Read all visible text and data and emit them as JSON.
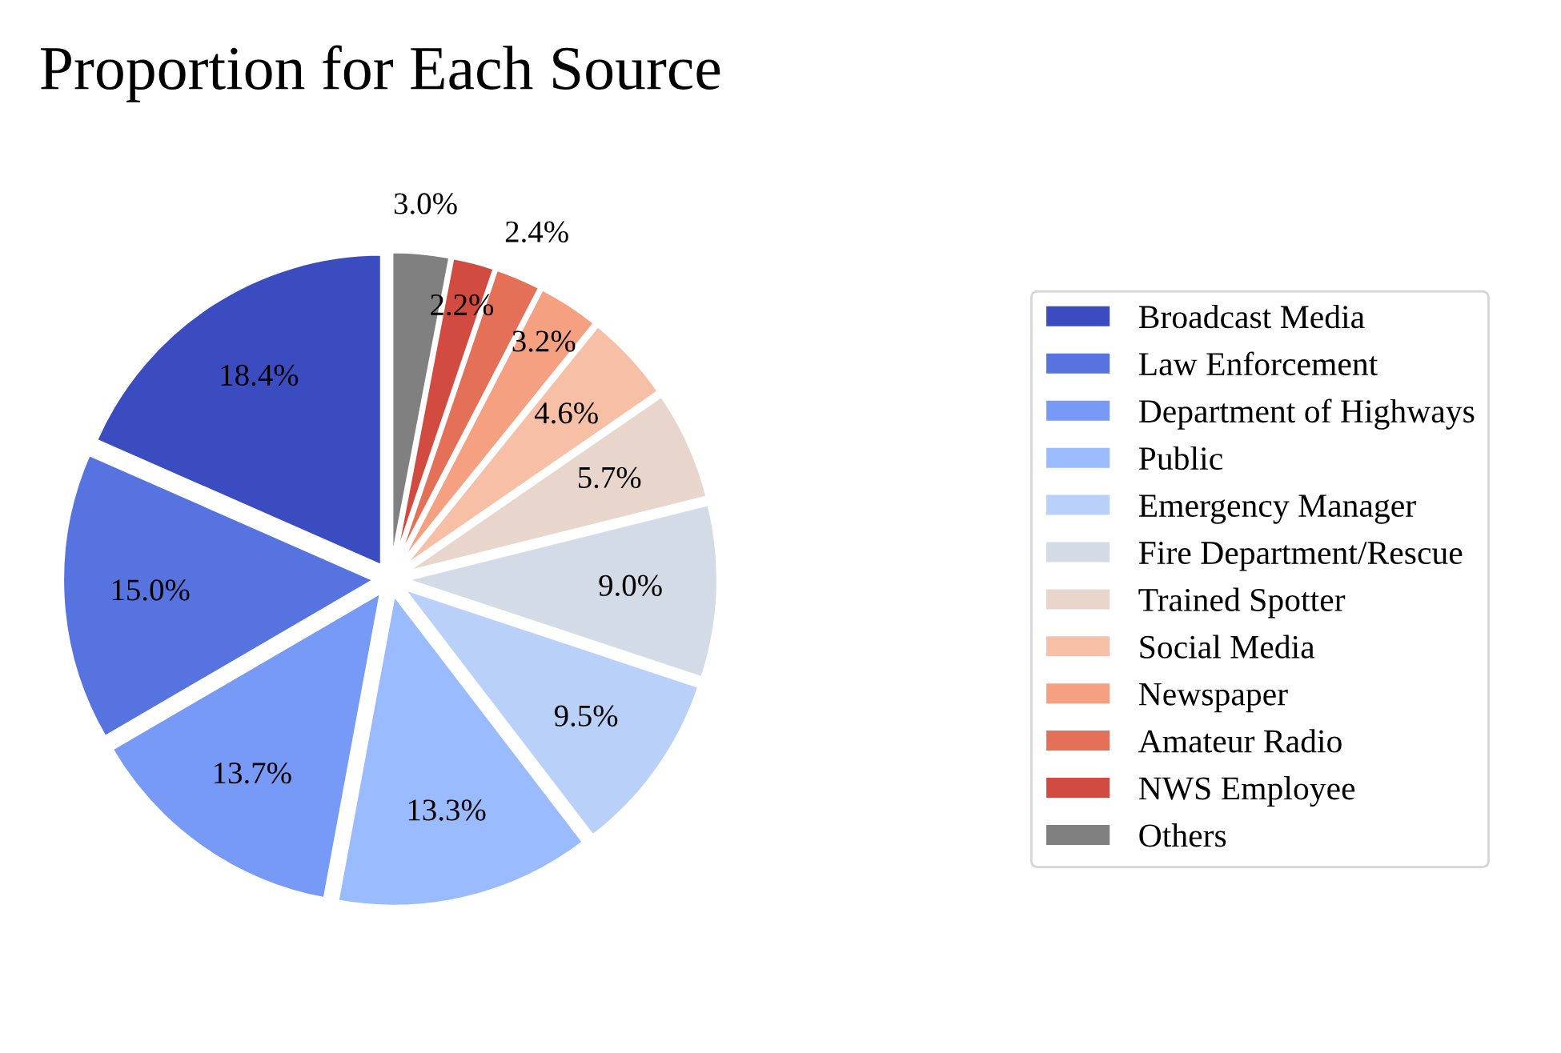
{
  "chart_data": {
    "type": "pie",
    "title": "Proportion for Each Source",
    "categories": [
      "Broadcast Media",
      "Law Enforcement",
      "Department of Highways",
      "Public",
      "Emergency Manager",
      "Fire Department/Rescue",
      "Trained Spotter",
      "Social Media",
      "Newspaper",
      "Amateur Radio",
      "NWS Employee",
      "Others"
    ],
    "values": [
      18.4,
      15.0,
      13.7,
      13.3,
      9.5,
      9.0,
      5.7,
      4.6,
      3.2,
      2.4,
      2.2,
      3.0
    ],
    "value_labels": [
      "18.4%",
      "15.0%",
      "13.7%",
      "13.3%",
      "9.5%",
      "9.0%",
      "5.7%",
      "4.6%",
      "3.2%",
      "2.4%",
      "2.2%",
      "3.0%"
    ],
    "colors": [
      "#3b4cc0",
      "#5673e0",
      "#779af7",
      "#9abbff",
      "#b9d0f9",
      "#d3dbe7",
      "#e8d6cc",
      "#f6bfa6",
      "#f5a081",
      "#e57058",
      "#d24b40",
      "#808080"
    ],
    "legend": "right"
  }
}
